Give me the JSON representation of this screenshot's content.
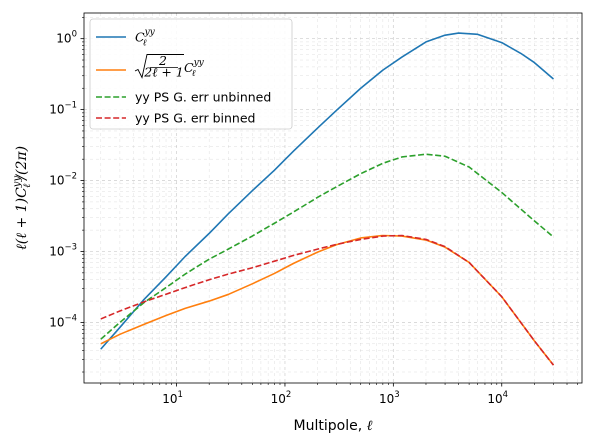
{
  "chart_data": {
    "type": "line",
    "title": "",
    "xlabel_text": "Multipole, ",
    "xlabel_symbol": "ℓ",
    "ylabel_text": "ℓ(ℓ + 1)C",
    "ylabel_sup": "yy",
    "ylabel_sub": "ℓ",
    "ylabel_tail": "/(2π)",
    "x_scale": "log",
    "y_scale": "log",
    "xlim": [
      1.4,
      55000
    ],
    "ylim": [
      1.4e-05,
      2.3
    ],
    "grid": true,
    "legend_position": "top-left",
    "x_major_ticks": [
      {
        "value": 10,
        "base": "10",
        "exp": "1"
      },
      {
        "value": 100,
        "base": "10",
        "exp": "2"
      },
      {
        "value": 1000,
        "base": "10",
        "exp": "3"
      },
      {
        "value": 10000,
        "base": "10",
        "exp": "4"
      }
    ],
    "y_major_ticks": [
      {
        "value": 0.0001,
        "base": "10",
        "exp": "−4"
      },
      {
        "value": 0.001,
        "base": "10",
        "exp": "−3"
      },
      {
        "value": 0.01,
        "base": "10",
        "exp": "−2"
      },
      {
        "value": 0.1,
        "base": "10",
        "exp": "−1"
      },
      {
        "value": 1,
        "base": "10",
        "exp": "0"
      }
    ],
    "series": [
      {
        "name": "C_ℓ^yy",
        "color": "#1f77b4",
        "dash": "solid",
        "x": [
          2,
          3,
          5,
          8,
          12,
          20,
          30,
          50,
          80,
          120,
          200,
          300,
          500,
          800,
          1200,
          2000,
          3000,
          4000,
          6000,
          10000,
          15000,
          20000,
          30000
        ],
        "y": [
          4.2e-05,
          8.5e-05,
          0.00021,
          0.00044,
          0.00085,
          0.0018,
          0.0034,
          0.0072,
          0.014,
          0.026,
          0.055,
          0.098,
          0.2,
          0.36,
          0.55,
          0.9,
          1.12,
          1.2,
          1.15,
          0.88,
          0.62,
          0.46,
          0.27
        ]
      },
      {
        "name": "sqrt(2/(2ℓ+1)) C_ℓ^yy",
        "color": "#ff7f0e",
        "dash": "solid",
        "x": [
          2,
          3,
          5,
          8,
          12,
          20,
          30,
          50,
          80,
          120,
          200,
          300,
          500,
          800,
          1200,
          2000,
          3000,
          5000,
          10000,
          20000,
          30000
        ],
        "y": [
          5e-05,
          6.8e-05,
          9.4e-05,
          0.000125,
          0.000158,
          0.0002,
          0.000248,
          0.00035,
          0.00049,
          0.00068,
          0.00098,
          0.00125,
          0.00155,
          0.00168,
          0.00165,
          0.00145,
          0.00115,
          0.0007,
          0.00023,
          5.5e-05,
          2.5e-05
        ]
      },
      {
        "name": "yy PS G. err unbinned",
        "color": "#2ca02c",
        "dash": "dashed",
        "x": [
          2,
          3,
          5,
          8,
          12,
          20,
          30,
          50,
          80,
          120,
          200,
          300,
          500,
          800,
          1200,
          2000,
          3000,
          5000,
          10000,
          20000,
          30000
        ],
        "y": [
          5.8e-05,
          0.0001,
          0.00019,
          0.00031,
          0.00048,
          0.00078,
          0.00108,
          0.00165,
          0.0025,
          0.0036,
          0.0058,
          0.0082,
          0.0125,
          0.0175,
          0.0215,
          0.0235,
          0.022,
          0.0155,
          0.0068,
          0.0027,
          0.0016
        ]
      },
      {
        "name": "yy PS G. err binned",
        "color": "#d62728",
        "dash": "dashed",
        "x": [
          2,
          3,
          5,
          8,
          12,
          20,
          30,
          50,
          80,
          120,
          200,
          300,
          500,
          800,
          1200,
          2000,
          3000,
          5000,
          10000,
          20000,
          30000
        ],
        "y": [
          0.000112,
          0.000145,
          0.000195,
          0.00025,
          0.00031,
          0.0004,
          0.00048,
          0.00059,
          0.00073,
          0.00088,
          0.00108,
          0.00126,
          0.00148,
          0.00165,
          0.00168,
          0.00148,
          0.00117,
          0.0007,
          0.00023,
          5.5e-05,
          2.5e-05
        ]
      }
    ],
    "legend": [
      {
        "kind": "math-c",
        "sym": "C",
        "sup": "yy",
        "sub": "ℓ",
        "color": "#1f77b4",
        "dash": "solid"
      },
      {
        "kind": "math-sqrt",
        "num": "2",
        "den": "2ℓ + 1",
        "sym": "C",
        "sup": "yy",
        "sub": "ℓ",
        "color": "#ff7f0e",
        "dash": "solid"
      },
      {
        "kind": "text",
        "label": "yy PS G. err unbinned",
        "color": "#2ca02c",
        "dash": "dashed"
      },
      {
        "kind": "text",
        "label": "yy PS G. err binned",
        "color": "#d62728",
        "dash": "dashed"
      }
    ]
  }
}
